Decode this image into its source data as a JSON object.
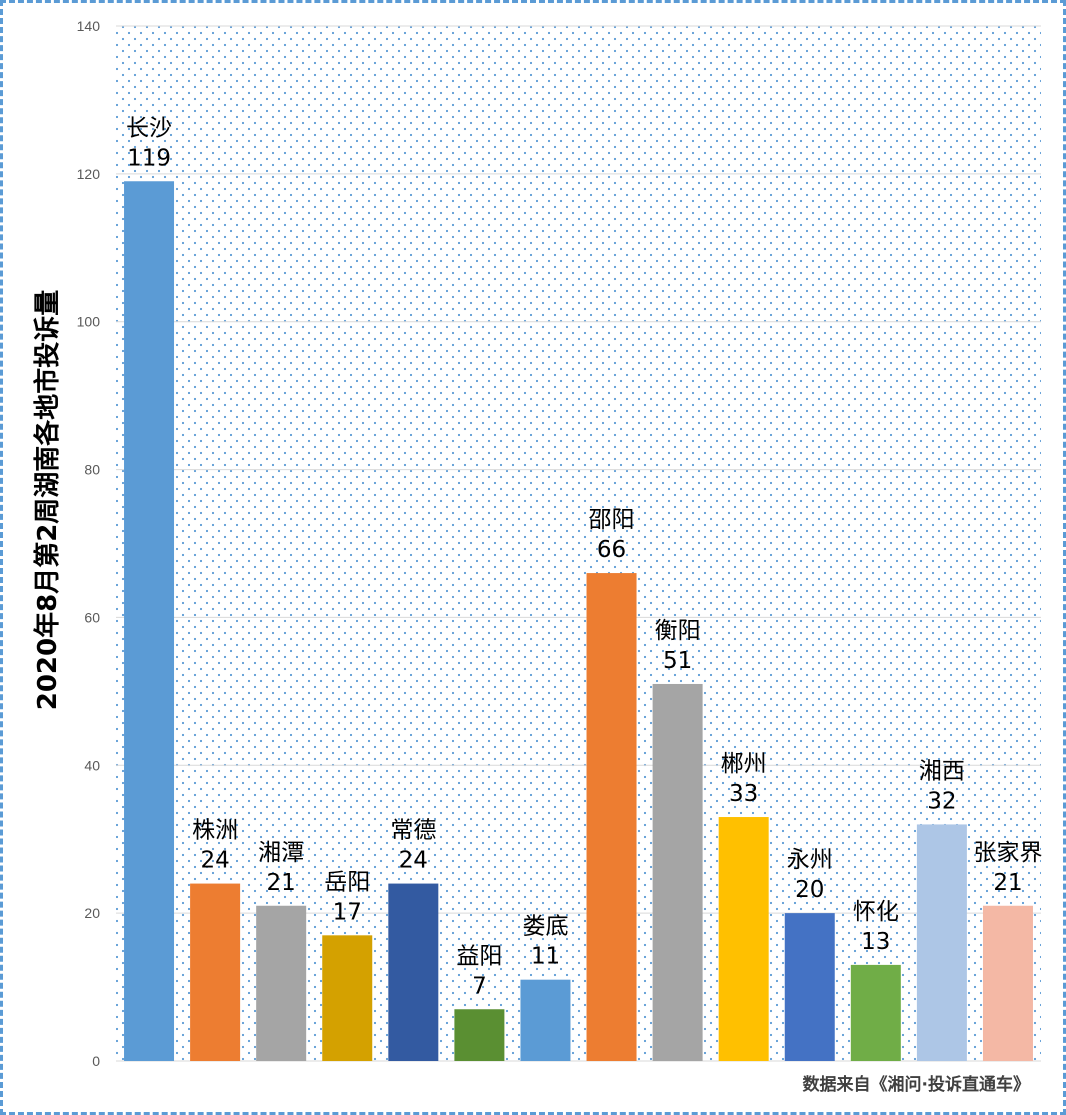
{
  "chart_data": {
    "type": "bar",
    "ylabel": "2020年8月第2周湖南各地市投诉量",
    "xlabel": "",
    "ylim": [
      0,
      140
    ],
    "yticks": [
      0,
      20,
      40,
      60,
      80,
      100,
      120,
      140
    ],
    "grid": true,
    "legend": "none",
    "categories": [
      "长沙",
      "株洲",
      "湘潭",
      "岳阳",
      "常德",
      "益阳",
      "娄底",
      "邵阳",
      "衡阳",
      "郴州",
      "永州",
      "怀化",
      "湘西",
      "张家界"
    ],
    "values": [
      119,
      24,
      21,
      17,
      24,
      7,
      11,
      66,
      51,
      33,
      20,
      13,
      32,
      21
    ],
    "colors": [
      "#5b9bd5",
      "#ed7d31",
      "#a5a5a5",
      "#d4a100",
      "#335aa1",
      "#5a8f32",
      "#5b9bd5",
      "#ed7d31",
      "#a5a5a5",
      "#ffc000",
      "#4472c4",
      "#70ad47",
      "#adc6e6",
      "#f4b8a5"
    ],
    "source_note": "数据来自《湘问·投诉直通车》"
  },
  "theme": {
    "frame_color": "#5b9bd5",
    "dot_color": "#5b9bd5",
    "grid_color": "#d9d9d9"
  }
}
